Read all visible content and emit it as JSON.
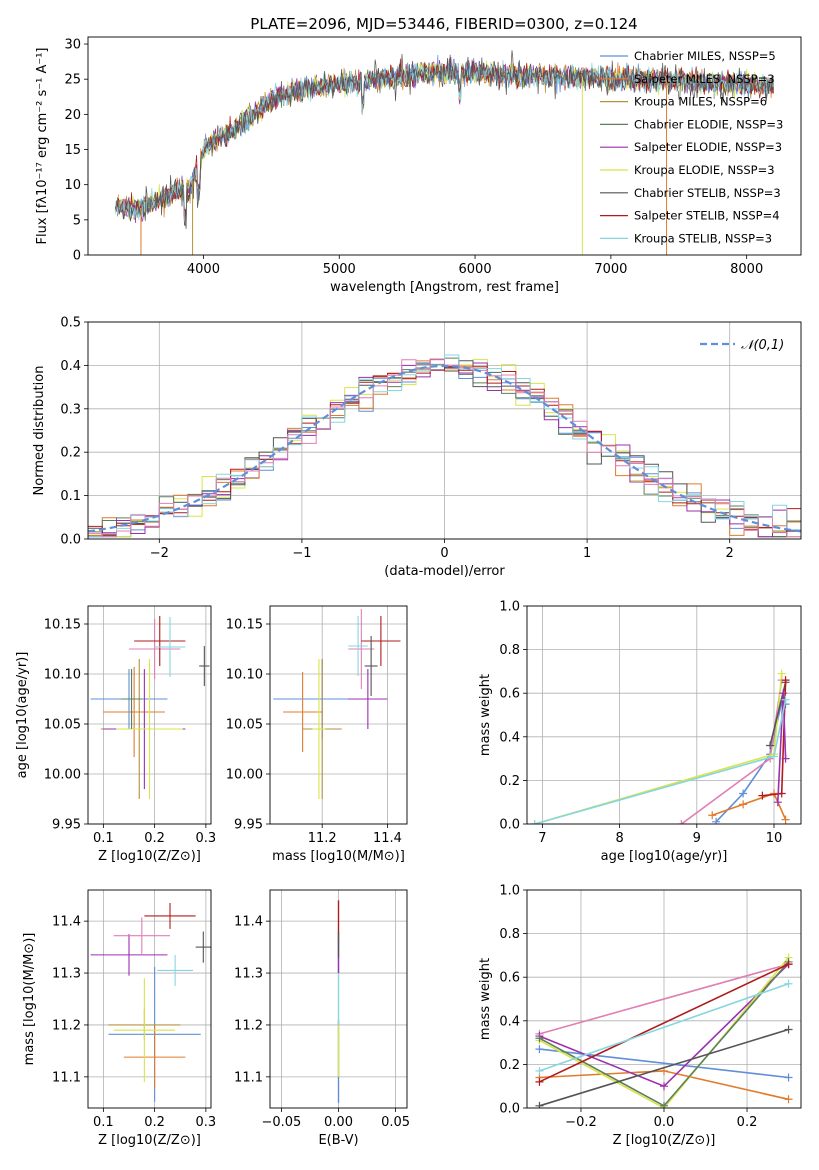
{
  "figure_title": "PLATE=2096, MJD=53446, FIBERID=0300, z=0.124",
  "colors": {
    "chabrier_miles": "#5f8fd8",
    "salpeter_miles": "#e07b2c",
    "kroupa_miles": "#b5933a",
    "chabrier_elodie": "#5e7f5e",
    "salpeter_elodie": "#9b2fb0",
    "kroupa_elodie": "#d9e44a",
    "chabrier_stelib": "#555555",
    "salpeter_stelib": "#b01c1c",
    "kroupa_stelib": "#86d6e0",
    "salpeter_pink": "#e07fb4",
    "normal_curve": "#5f8fd8"
  },
  "chart_data": [
    {
      "id": "spectrum",
      "type": "line",
      "title": "PLATE=2096, MJD=53446, FIBERID=0300, z=0.124",
      "xlabel": "wavelength [Angstrom, rest frame]",
      "ylabel": "Flux [fλ10⁻¹⁷ erg cm⁻² s⁻¹ A⁻¹]",
      "xlim": [
        3150,
        8400
      ],
      "ylim": [
        0,
        31
      ],
      "xticks": [
        "4000",
        "5000",
        "6000",
        "7000",
        "8000"
      ],
      "yticks": [
        "0",
        "5",
        "10",
        "15",
        "20",
        "25",
        "30"
      ],
      "continuum": {
        "x": [
          3350,
          3500,
          3600,
          3700,
          3800,
          3900,
          4000,
          4100,
          4200,
          4300,
          4400,
          4500,
          4700,
          4900,
          5100,
          5300,
          5500,
          5700,
          5900,
          6100,
          6300,
          6500,
          6700,
          6900,
          7100,
          7300,
          7500,
          7700,
          7900,
          8100,
          8200
        ],
        "y": [
          7,
          6.5,
          7,
          8,
          9,
          9.5,
          15,
          16.5,
          17.5,
          19,
          20.5,
          22,
          23.5,
          24,
          24.5,
          25,
          25.5,
          26,
          26,
          25.8,
          25.6,
          25.5,
          25.3,
          25.2,
          25,
          24.9,
          24.8,
          24.6,
          24.4,
          24.2,
          24.1
        ]
      },
      "legend": [
        "Chabrier MILES, NSSP=5",
        "Salpeter MILES, NSSP=3",
        "Kroupa MILES, NSSP=6",
        "Chabrier ELODIE, NSSP=3",
        "Salpeter ELODIE, NSSP=3",
        "Kroupa ELODIE, NSSP=3",
        "Chabrier STELIB, NSSP=3",
        "Salpeter STELIB, NSSP=4",
        "Kroupa STELIB, NSSP=3"
      ],
      "legend_placement": "top-right",
      "grid": false
    },
    {
      "id": "residuals",
      "type": "histogram",
      "xlabel": "(data-model)/error",
      "ylabel": "Normed distribution",
      "xlim": [
        -2.5,
        2.5
      ],
      "ylim": [
        0,
        0.5
      ],
      "xticks": [
        "−2",
        "−1",
        "0",
        "1",
        "2"
      ],
      "yticks": [
        "0.0",
        "0.1",
        "0.2",
        "0.3",
        "0.4",
        "0.5"
      ],
      "bin_width": 0.1,
      "legend": [
        "𝒩(0,1)"
      ],
      "legend_placement": "top-right",
      "grid": true,
      "reference_curve": "standard normal N(0,1), peak 0.399"
    },
    {
      "id": "age-vs-z",
      "type": "errorbar",
      "xlabel": "Z [log10(Z/Z⊙)]",
      "ylabel": "age [log10(age/yr)]",
      "xlim": [
        0.07,
        0.31
      ],
      "ylim": [
        9.95,
        10.168
      ],
      "xticks": [
        "0.1",
        "0.2",
        "0.3"
      ],
      "yticks": [
        "9.95",
        "10.00",
        "10.05",
        "10.10",
        "10.15"
      ],
      "points": [
        {
          "x": 0.15,
          "y": 10.075,
          "xerr": 0.075,
          "yerr": 0.03
        },
        {
          "x": 0.16,
          "y": 10.062,
          "xerr": 0.06,
          "yerr": 0.045
        },
        {
          "x": 0.17,
          "y": 10.045,
          "xerr": 0.075,
          "yerr": 0.07
        },
        {
          "x": 0.18,
          "y": 10.045,
          "xerr": 0.08,
          "yerr": 0.06
        },
        {
          "x": 0.19,
          "y": 10.045,
          "xerr": 0.065,
          "yerr": 0.07
        },
        {
          "x": 0.2,
          "y": 10.125,
          "xerr": 0.05,
          "yerr": 0.03
        },
        {
          "x": 0.21,
          "y": 10.133,
          "xerr": 0.05,
          "yerr": 0.025
        },
        {
          "x": 0.23,
          "y": 10.127,
          "xerr": 0.03,
          "yerr": 0.03
        },
        {
          "x": 0.297,
          "y": 10.108,
          "xerr": 0.01,
          "yerr": 0.02
        },
        {
          "x": 0.155,
          "y": 10.075,
          "xerr": 0.02,
          "yerr": 0.03
        }
      ],
      "grid": true
    },
    {
      "id": "age-vs-mass",
      "type": "errorbar",
      "xlabel": "mass [log10(M/M⊙)]",
      "xlim": [
        11.04,
        11.46
      ],
      "ylim": [
        9.95,
        10.168
      ],
      "xticks": [
        "11.2",
        "11.4"
      ],
      "yticks": [
        "9.95",
        "10.00",
        "10.05",
        "10.10",
        "10.15"
      ],
      "points": [
        {
          "x": 11.2,
          "y": 10.075,
          "xerr": 0.15,
          "yerr": 0.04
        },
        {
          "x": 11.14,
          "y": 10.062,
          "xerr": 0.06,
          "yerr": 0.04
        },
        {
          "x": 11.2,
          "y": 10.045,
          "xerr": 0.06,
          "yerr": 0.07
        },
        {
          "x": 11.34,
          "y": 10.075,
          "xerr": 0.06,
          "yerr": 0.03
        },
        {
          "x": 11.19,
          "y": 10.045,
          "xerr": 0.02,
          "yerr": 0.07
        },
        {
          "x": 11.32,
          "y": 10.125,
          "xerr": 0.04,
          "yerr": 0.04
        },
        {
          "x": 11.38,
          "y": 10.133,
          "xerr": 0.06,
          "yerr": 0.025
        },
        {
          "x": 11.31,
          "y": 10.128,
          "xerr": 0.03,
          "yerr": 0.03
        },
        {
          "x": 11.35,
          "y": 10.108,
          "xerr": 0.02,
          "yerr": 0.03
        }
      ],
      "grid": true
    },
    {
      "id": "weight-vs-age",
      "type": "line",
      "xlabel": "age [log10(age/yr)]",
      "ylabel": "mass weight",
      "xlim": [
        6.8,
        10.35
      ],
      "ylim": [
        0,
        1
      ],
      "xticks": [
        "7",
        "8",
        "9",
        "10"
      ],
      "yticks": [
        "0.0",
        "0.2",
        "0.4",
        "0.6",
        "0.8",
        "1.0"
      ],
      "series": [
        {
          "x": [
            9.25,
            9.6,
            9.95,
            10.1,
            10.15
          ],
          "y": [
            0.01,
            0.14,
            0.32,
            0.56,
            0.55
          ],
          "color": "chabrier_miles"
        },
        {
          "x": [
            9.2,
            9.6,
            10.0,
            10.15
          ],
          "y": [
            0.04,
            0.09,
            0.14,
            0.02
          ],
          "color": "salpeter_miles"
        },
        {
          "x": [
            8.8,
            9.95,
            10.1
          ],
          "y": [
            0.0,
            0.3,
            0.66
          ],
          "color": "salpeter_pink"
        },
        {
          "x": [
            6.9,
            10.0,
            10.1
          ],
          "y": [
            0.0,
            0.32,
            0.69
          ],
          "color": "kroupa_elodie"
        },
        {
          "x": [
            9.95,
            10.15
          ],
          "y": [
            0.36,
            0.65
          ],
          "color": "chabrier_stelib"
        },
        {
          "x": [
            9.85,
            10.1,
            10.15
          ],
          "y": [
            0.13,
            0.14,
            0.66
          ],
          "color": "salpeter_stelib"
        },
        {
          "x": [
            10.05,
            10.12,
            10.15
          ],
          "y": [
            0.1,
            0.6,
            0.3
          ],
          "color": "salpeter_elodie"
        },
        {
          "x": [
            6.9,
            10.0,
            10.15
          ],
          "y": [
            0.0,
            0.31,
            0.57
          ],
          "color": "kroupa_stelib"
        }
      ],
      "grid": true
    },
    {
      "id": "mass-vs-z",
      "type": "errorbar",
      "xlabel": "Z [log10(Z/Z⊙)]",
      "ylabel": "mass [log10(M/M⊙)]",
      "xlim": [
        0.07,
        0.31
      ],
      "ylim": [
        11.04,
        11.46
      ],
      "xticks": [
        "0.1",
        "0.2",
        "0.3"
      ],
      "yticks": [
        "11.1",
        "11.2",
        "11.3",
        "11.4"
      ],
      "points": [
        {
          "x": 0.2,
          "y": 11.182,
          "xerr": 0.09,
          "yerr": 0.13
        },
        {
          "x": 0.2,
          "y": 11.138,
          "xerr": 0.06,
          "yerr": 0.06
        },
        {
          "x": 0.18,
          "y": 11.2,
          "xerr": 0.07,
          "yerr": 0.03
        },
        {
          "x": 0.15,
          "y": 11.335,
          "xerr": 0.075,
          "yerr": 0.04
        },
        {
          "x": 0.18,
          "y": 11.19,
          "xerr": 0.06,
          "yerr": 0.1
        },
        {
          "x": 0.175,
          "y": 11.372,
          "xerr": 0.055,
          "yerr": 0.035
        },
        {
          "x": 0.23,
          "y": 11.41,
          "xerr": 0.05,
          "yerr": 0.025
        },
        {
          "x": 0.24,
          "y": 11.305,
          "xerr": 0.035,
          "yerr": 0.03
        },
        {
          "x": 0.295,
          "y": 11.35,
          "xerr": 0.015,
          "yerr": 0.03
        }
      ],
      "grid": true
    },
    {
      "id": "mass-vs-ebv",
      "type": "errorbar",
      "xlabel": "E(B-V)",
      "xlim": [
        -0.06,
        0.06
      ],
      "ylim": [
        11.04,
        11.46
      ],
      "xticks": [
        "−0.05",
        "0.00",
        "0.05"
      ],
      "yticks": [
        "11.1",
        "11.2",
        "11.3",
        "11.4"
      ],
      "grid": true
    },
    {
      "id": "weight-vs-z",
      "type": "line",
      "xlabel": "Z [log10(Z/Z⊙)]",
      "ylabel": "mass weight",
      "xlim": [
        -0.33,
        0.33
      ],
      "ylim": [
        0,
        1
      ],
      "xticks": [
        "−0.2",
        "0.0",
        "0.2"
      ],
      "yticks": [
        "0.0",
        "0.2",
        "0.4",
        "0.6",
        "0.8",
        "1.0"
      ],
      "series": [
        {
          "x": [
            -0.3,
            0.3
          ],
          "y": [
            0.27,
            0.14
          ],
          "color": "chabrier_miles"
        },
        {
          "x": [
            -0.3,
            0.0,
            0.3
          ],
          "y": [
            0.14,
            0.17,
            0.04
          ],
          "color": "salpeter_miles"
        },
        {
          "x": [
            -0.3,
            0.3
          ],
          "y": [
            0.34,
            0.66
          ],
          "color": "salpeter_pink"
        },
        {
          "x": [
            -0.3,
            0.0,
            0.3
          ],
          "y": [
            0.33,
            0.1,
            0.66
          ],
          "color": "salpeter_elodie"
        },
        {
          "x": [
            -0.3,
            0.0,
            0.3
          ],
          "y": [
            0.31,
            0.0,
            0.69
          ],
          "color": "kroupa_elodie"
        },
        {
          "x": [
            -0.3,
            0.0,
            0.3
          ],
          "y": [
            0.32,
            0.01,
            0.67
          ],
          "color": "chabrier_elodie"
        },
        {
          "x": [
            -0.3,
            0.3
          ],
          "y": [
            0.01,
            0.36
          ],
          "color": "chabrier_stelib"
        },
        {
          "x": [
            -0.3,
            0.3
          ],
          "y": [
            0.12,
            0.66
          ],
          "color": "salpeter_stelib"
        },
        {
          "x": [
            -0.3,
            0.3
          ],
          "y": [
            0.17,
            0.57
          ],
          "color": "kroupa_stelib"
        }
      ],
      "grid": true
    }
  ]
}
